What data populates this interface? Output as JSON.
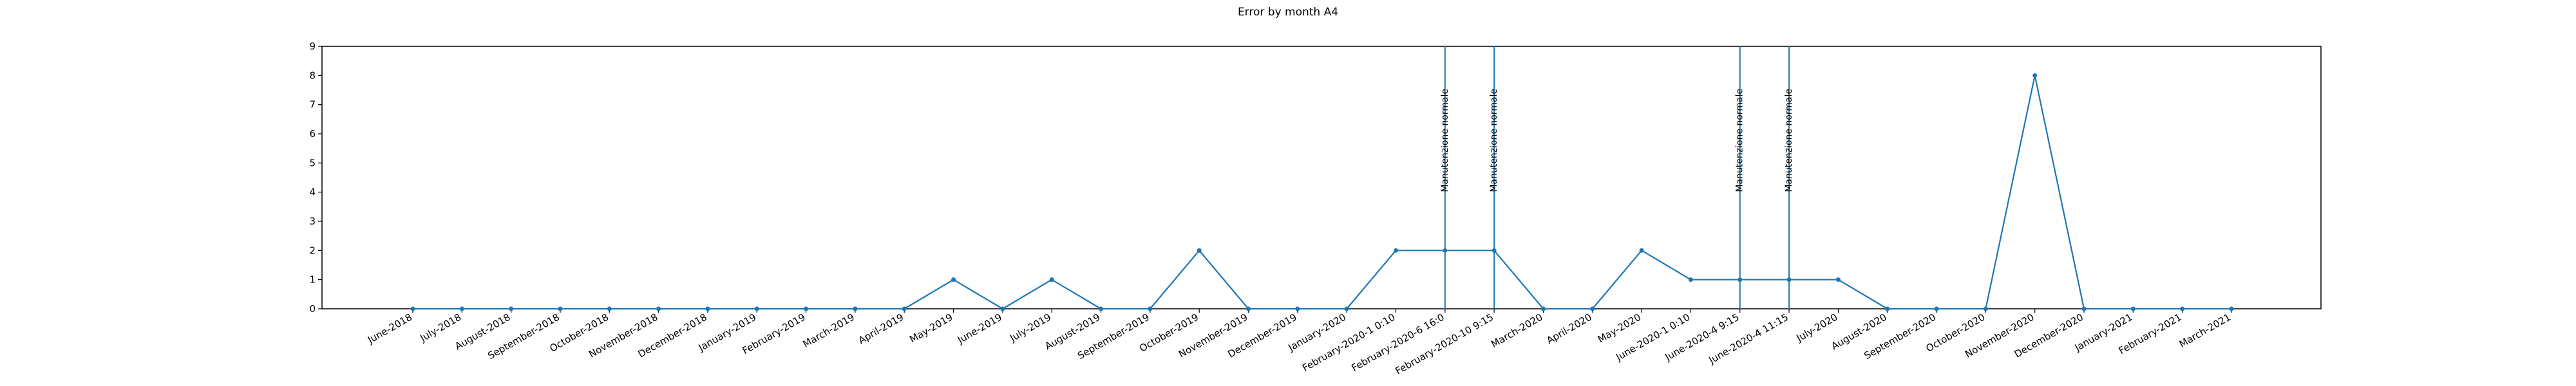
{
  "chart_data": {
    "type": "line",
    "title": "Error by month A4",
    "xlabel": "",
    "ylabel": "",
    "ylim": [
      0,
      9
    ],
    "yticks": [
      0,
      1,
      2,
      3,
      4,
      5,
      6,
      7,
      8,
      9
    ],
    "grid": false,
    "colors": {
      "line": "#1f77b4",
      "vline": "#1f77b4",
      "axis": "#000000"
    },
    "categories": [
      "June-2018",
      "July-2018",
      "August-2018",
      "September-2018",
      "October-2018",
      "November-2018",
      "December-2018",
      "January-2019",
      "February-2019",
      "March-2019",
      "April-2019",
      "May-2019",
      "June-2019",
      "July-2019",
      "August-2019",
      "September-2019",
      "October-2019",
      "November-2019",
      "December-2019",
      "January-2020",
      "February-2020-1 0:10",
      "February-2020-6 16:0",
      "February-2020-10 9:15",
      "March-2020",
      "April-2020",
      "May-2020",
      "June-2020-1 0:10",
      "June-2020-4 9:15",
      "June-2020-4 11:15",
      "July-2020",
      "August-2020",
      "September-2020",
      "October-2020",
      "November-2020",
      "December-2020",
      "January-2021",
      "February-2021",
      "March-2021"
    ],
    "values": [
      0,
      0,
      0,
      0,
      0,
      0,
      0,
      0,
      0,
      0,
      0,
      1,
      0,
      1,
      0,
      0,
      2,
      0,
      0,
      0,
      2,
      2,
      2,
      0,
      0,
      2,
      1,
      1,
      1,
      1,
      0,
      0,
      0,
      8,
      0,
      0,
      0,
      0
    ],
    "annotations": [
      {
        "category": "February-2020-6 16:0",
        "text": "Manutenzione normale"
      },
      {
        "category": "February-2020-10 9:15",
        "text": "Manutenzione normale"
      },
      {
        "category": "June-2020-4 9:15",
        "text": "Manutenzione normale"
      },
      {
        "category": "June-2020-4 11:15",
        "text": "Manutenzione normale"
      }
    ]
  }
}
